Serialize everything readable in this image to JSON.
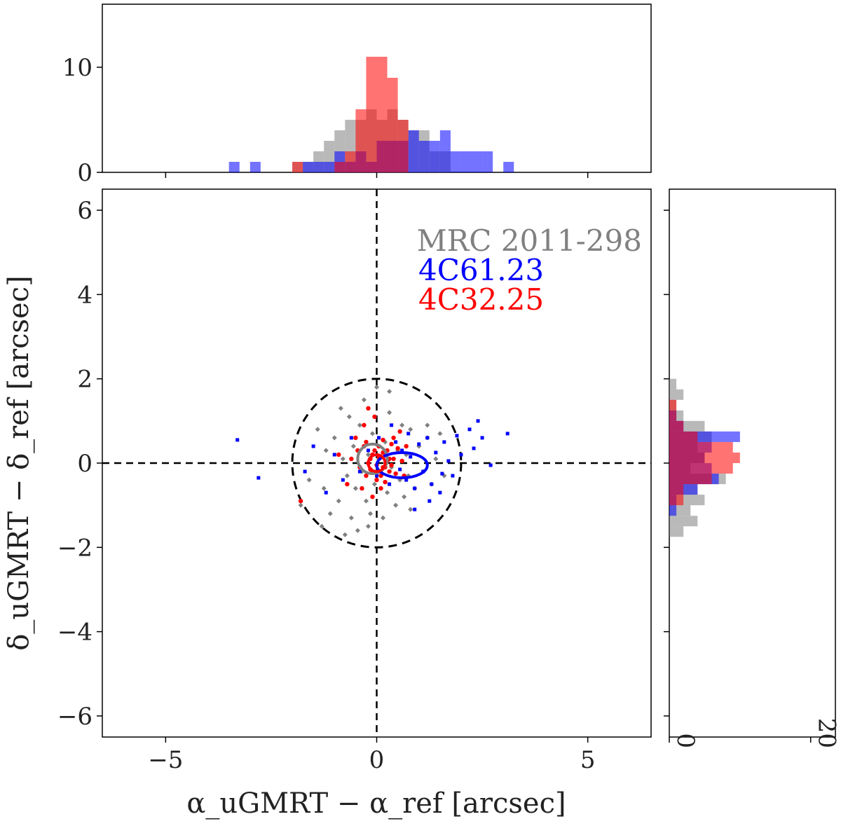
{
  "chart_data": {
    "type": "scatter",
    "xlabel": "α_uGMRT − α_ref [arcsec]",
    "ylabel": "δ_uGMRT − δ_ref [arcsec]",
    "xlim": [
      -6.5,
      6.5
    ],
    "ylim": [
      -6.5,
      6.5
    ],
    "x_ticks": [
      -5,
      0,
      5
    ],
    "y_ticks": [
      -6,
      -4,
      -2,
      0,
      2,
      4,
      6
    ],
    "top_hist_ylim": [
      0,
      16
    ],
    "top_hist_ticks": [
      0,
      10
    ],
    "right_hist_xlim": [
      0,
      23.5
    ],
    "right_hist_ticks": [
      0,
      20
    ],
    "hist_bin_width": 0.25,
    "reference_circle_radius": 2,
    "legend": [
      {
        "label": "MRC 2011-298",
        "color": "#808080"
      },
      {
        "label": "4C61.23",
        "color": "#0000ff"
      },
      {
        "label": "4C32.25",
        "color": "#ff0000"
      }
    ],
    "series": [
      {
        "name": "MRC 2011-298",
        "color": "#808080",
        "ellipse": {
          "cx": -0.1,
          "cy": 0.1,
          "rx": 0.35,
          "ry": 0.35
        },
        "points": [
          [
            -1.6,
            -0.4
          ],
          [
            -1.4,
            0.8
          ],
          [
            -1.3,
            -1.5
          ],
          [
            -1.2,
            0.3
          ],
          [
            -1.1,
            -1.2
          ],
          [
            -1.0,
            0.6
          ],
          [
            -0.9,
            -0.9
          ],
          [
            -0.85,
            1.3
          ],
          [
            -0.8,
            0.1
          ],
          [
            -0.7,
            -0.3
          ],
          [
            -0.65,
            1.1
          ],
          [
            -0.6,
            -1.3
          ],
          [
            -0.55,
            0.4
          ],
          [
            -0.5,
            -0.6
          ],
          [
            -0.45,
            -1.6
          ],
          [
            -0.4,
            0.9
          ],
          [
            -0.35,
            -0.2
          ],
          [
            -0.3,
            1.5
          ],
          [
            -0.25,
            -0.9
          ],
          [
            -0.2,
            0.2
          ],
          [
            -0.15,
            -1.2
          ],
          [
            -0.1,
            0.7
          ],
          [
            -0.05,
            -0.5
          ],
          [
            0.0,
            1.8
          ],
          [
            0.05,
            0.1
          ],
          [
            0.1,
            -0.3
          ],
          [
            0.15,
            -1.3
          ],
          [
            0.2,
            0.5
          ],
          [
            0.25,
            -0.7
          ],
          [
            0.3,
            1.2
          ],
          [
            0.35,
            -0.1
          ],
          [
            0.4,
            0.6
          ],
          [
            0.45,
            -1.0
          ],
          [
            0.5,
            0.3
          ],
          [
            0.55,
            -0.4
          ],
          [
            0.6,
            0.9
          ],
          [
            0.65,
            -0.8
          ],
          [
            0.7,
            0.2
          ],
          [
            0.75,
            -0.3
          ],
          [
            0.8,
            0.8
          ],
          [
            0.9,
            -0.6
          ],
          [
            1.0,
            0.4
          ],
          [
            1.1,
            -0.2
          ],
          [
            1.2,
            0.6
          ],
          [
            1.3,
            -0.5
          ],
          [
            1.4,
            0.1
          ],
          [
            1.5,
            0.7
          ],
          [
            1.6,
            -0.3
          ],
          [
            -1.8,
            -1.0
          ],
          [
            -0.75,
            -1.7
          ],
          [
            0.3,
            1.7
          ],
          [
            -0.2,
            -1.5
          ],
          [
            1.2,
            0.9
          ],
          [
            -1.25,
            -0.6
          ],
          [
            0.8,
            -1.1
          ]
        ]
      },
      {
        "name": "4C61.23",
        "color": "#0000ff",
        "ellipse": {
          "cx": 0.6,
          "cy": -0.05,
          "rx": 0.6,
          "ry": 0.3
        },
        "points": [
          [
            -3.3,
            0.55
          ],
          [
            -2.8,
            -0.35
          ],
          [
            -1.7,
            -0.2
          ],
          [
            -1.5,
            0.4
          ],
          [
            -1.2,
            -0.7
          ],
          [
            -1.0,
            0.2
          ],
          [
            -0.8,
            -0.4
          ],
          [
            -0.6,
            0.6
          ],
          [
            -0.4,
            -0.2
          ],
          [
            -0.2,
            0.3
          ],
          [
            0.0,
            -0.3
          ],
          [
            0.2,
            0.2
          ],
          [
            0.3,
            -0.5
          ],
          [
            0.45,
            0.5
          ],
          [
            0.55,
            -0.15
          ],
          [
            0.6,
            0.3
          ],
          [
            0.7,
            -0.4
          ],
          [
            0.8,
            0.15
          ],
          [
            0.9,
            -0.6
          ],
          [
            1.0,
            0.45
          ],
          [
            1.1,
            -0.2
          ],
          [
            1.2,
            0.6
          ],
          [
            1.3,
            -0.5
          ],
          [
            1.4,
            0.25
          ],
          [
            1.5,
            -0.7
          ],
          [
            1.6,
            0.5
          ],
          [
            1.7,
            0.05
          ],
          [
            1.8,
            -0.3
          ],
          [
            1.9,
            0.65
          ],
          [
            2.0,
            0.2
          ],
          [
            2.2,
            0.8
          ],
          [
            2.3,
            0.35
          ],
          [
            2.4,
            1.0
          ],
          [
            2.5,
            0.6
          ],
          [
            2.7,
            -0.05
          ],
          [
            3.1,
            0.7
          ],
          [
            0.9,
            -1.1
          ],
          [
            1.25,
            -0.9
          ],
          [
            0.35,
            0.9
          ],
          [
            0.05,
            0.6
          ],
          [
            -0.35,
            -0.6
          ],
          [
            0.75,
            0.7
          ],
          [
            1.55,
            -0.25
          ]
        ]
      },
      {
        "name": "4C32.25",
        "color": "#ff0000",
        "ellipse": {
          "cx": 0.0,
          "cy": 0.0,
          "rx": 0.2,
          "ry": 0.2
        },
        "points": [
          [
            -1.8,
            -0.9
          ],
          [
            -0.9,
            0.2
          ],
          [
            -0.7,
            -0.5
          ],
          [
            -0.5,
            0.6
          ],
          [
            -0.4,
            -0.1
          ],
          [
            -0.3,
            0.4
          ],
          [
            -0.25,
            -0.3
          ],
          [
            -0.2,
            1.3
          ],
          [
            -0.15,
            0.1
          ],
          [
            -0.1,
            -0.2
          ],
          [
            -0.05,
            0.3
          ],
          [
            0.0,
            -0.05
          ],
          [
            0.05,
            0.15
          ],
          [
            0.1,
            -0.3
          ],
          [
            0.15,
            0.25
          ],
          [
            0.2,
            -0.1
          ],
          [
            0.25,
            0.05
          ],
          [
            0.3,
            -0.2
          ],
          [
            0.35,
            0.45
          ],
          [
            0.4,
            0.1
          ],
          [
            0.45,
            -0.25
          ],
          [
            0.5,
            0.35
          ],
          [
            0.55,
            0.75
          ],
          [
            0.6,
            0.05
          ],
          [
            -0.1,
            -0.8
          ],
          [
            0.1,
            -0.6
          ],
          [
            -0.05,
            1.1
          ],
          [
            -0.3,
            0.9
          ],
          [
            0.65,
            -0.3
          ],
          [
            0.4,
            0.6
          ],
          [
            -0.35,
            -0.6
          ],
          [
            -0.6,
            0.1
          ],
          [
            0.15,
            0.55
          ],
          [
            0.0,
            -0.4
          ],
          [
            0.25,
            0.3
          ],
          [
            -0.2,
            0.0
          ],
          [
            0.3,
            0.1
          ],
          [
            -0.15,
            -0.15
          ],
          [
            0.05,
            0.4
          ],
          [
            -0.45,
            0.3
          ],
          [
            0.7,
            0.4
          ],
          [
            0.2,
            -0.45
          ],
          [
            -0.25,
            0.5
          ],
          [
            0.15,
            -0.1
          ],
          [
            -0.1,
            0.2
          ],
          [
            0.35,
            -0.05
          ]
        ]
      }
    ]
  }
}
